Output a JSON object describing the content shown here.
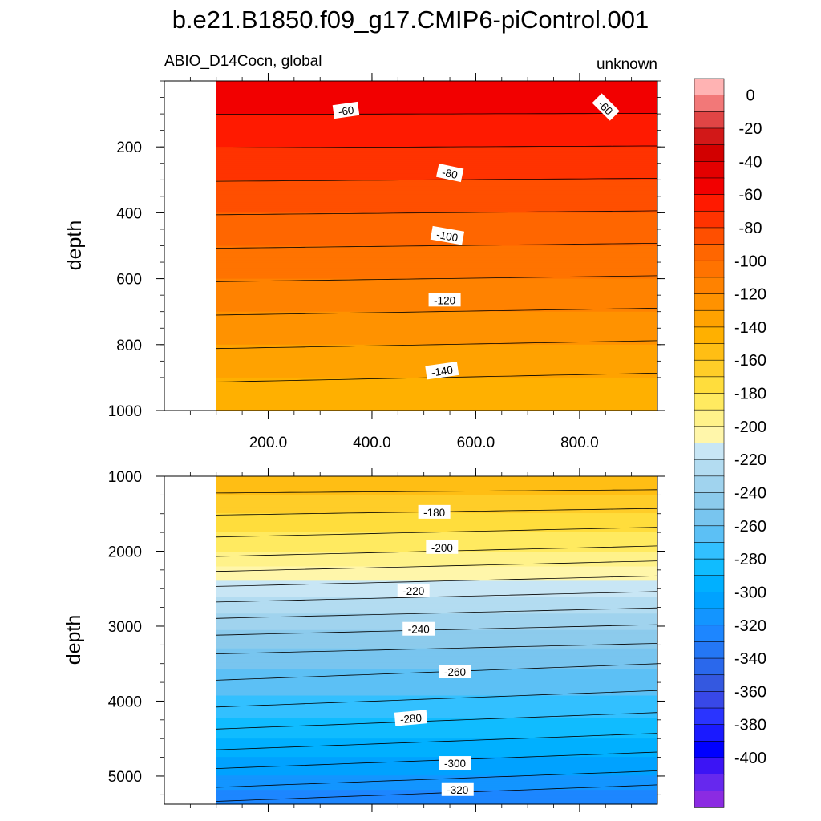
{
  "chart_data": {
    "type": "contour",
    "title": "b.e21.B1850.f09_g17.CMIP6-piControl.001",
    "left_label": "ABIO_D14Cocn, global",
    "right_label": "unknown",
    "ylabel": "depth",
    "panels": [
      {
        "name": "upper",
        "depth_range": [
          0,
          1000
        ],
        "y_ticks": [
          200,
          400,
          600,
          800,
          1000
        ],
        "y_tick_labels": [
          "200",
          "400",
          "600",
          "800",
          "1000"
        ],
        "contour_labels": [
          {
            "text": "-60",
            "x": 350,
            "depth": 90,
            "rot": -8
          },
          {
            "text": "-60",
            "x": 850,
            "depth": 80,
            "rot": 45
          },
          {
            "text": "-80",
            "x": 550,
            "depth": 280,
            "rot": 12
          },
          {
            "text": "-100",
            "x": 545,
            "depth": 470,
            "rot": 10
          },
          {
            "text": "-120",
            "x": 540,
            "depth": 665,
            "rot": 0
          },
          {
            "text": "-140",
            "x": 535,
            "depth": 880,
            "rot": -8
          }
        ]
      },
      {
        "name": "lower",
        "depth_range": [
          1000,
          5375
        ],
        "y_ticks": [
          1000,
          2000,
          3000,
          4000,
          5000
        ],
        "y_tick_labels": [
          "1000",
          "2000",
          "3000",
          "4000",
          "5000"
        ],
        "contour_labels": [
          {
            "text": "-180",
            "x": 520,
            "depth": 1480,
            "rot": 0
          },
          {
            "text": "-200",
            "x": 535,
            "depth": 1950,
            "rot": 0
          },
          {
            "text": "-220",
            "x": 480,
            "depth": 2530,
            "rot": 0
          },
          {
            "text": "-240",
            "x": 490,
            "depth": 3040,
            "rot": 0
          },
          {
            "text": "-260",
            "x": 560,
            "depth": 3610,
            "rot": 0
          },
          {
            "text": "-280",
            "x": 475,
            "depth": 4230,
            "rot": -5
          },
          {
            "text": "-300",
            "x": 560,
            "depth": 4830,
            "rot": 0
          },
          {
            "text": "-320",
            "x": 565,
            "depth": 5180,
            "rot": 0
          }
        ]
      }
    ],
    "x_ticks": [
      200,
      400,
      600,
      800
    ],
    "x_tick_labels": [
      "200.0",
      "400.0",
      "600.0",
      "800.0"
    ],
    "x_range": [
      0,
      950
    ],
    "data_x_start": 100,
    "contour_levels": [
      0,
      -10,
      -20,
      -30,
      -40,
      -50,
      -60,
      -70,
      -80,
      -90,
      -100,
      -110,
      -120,
      -130,
      -140,
      -150,
      -160,
      -170,
      -180,
      -190,
      -200,
      -210,
      -220,
      -230,
      -240,
      -250,
      -260,
      -270,
      -280,
      -290,
      -300,
      -310,
      -320,
      -330,
      -340,
      -350,
      -360,
      -370,
      -380,
      -390,
      -400,
      -410
    ],
    "profile_depths": [
      0,
      100,
      200,
      300,
      400,
      500,
      600,
      700,
      800,
      900,
      1000,
      1500,
      2000,
      2500,
      3000,
      3500,
      4000,
      4500,
      5000,
      5375
    ],
    "profile_values": [
      -52,
      -60,
      -70,
      -80,
      -90,
      -100,
      -110,
      -120,
      -130,
      -140,
      -150,
      -170,
      -190,
      -215,
      -238,
      -258,
      -272,
      -290,
      -310,
      -330
    ],
    "colorbar": {
      "labels": [
        "0",
        "-20",
        "-40",
        "-60",
        "-80",
        "-100",
        "-120",
        "-140",
        "-160",
        "-180",
        "-200",
        "-220",
        "-240",
        "-260",
        "-280",
        "-300",
        "-320",
        "-340",
        "-360",
        "-380",
        "-400"
      ],
      "colors": [
        "#ffb3b3",
        "#f27878",
        "#e04545",
        "#d21818",
        "#d20000",
        "#e30000",
        "#f20000",
        "#ff1a00",
        "#ff3300",
        "#ff4f00",
        "#ff6600",
        "#ff7300",
        "#ff8200",
        "#ff9200",
        "#ffa200",
        "#ffb000",
        "#ffbe14",
        "#ffcd28",
        "#ffdd3c",
        "#ffea60",
        "#fff28a",
        "#fff6aa",
        "#c8e6f5",
        "#b3dcf1",
        "#a0d3ee",
        "#8ccbec",
        "#78c5ef",
        "#5cc0f5",
        "#32c0ff",
        "#10bcff",
        "#00b0ff",
        "#00a2ff",
        "#1395ff",
        "#1d86ff",
        "#2477f5",
        "#2a68ec",
        "#3458e0",
        "#3848e8",
        "#2a34ff",
        "#1a1aff",
        "#0000ff",
        "#3c14f5",
        "#6628ee",
        "#8b2be2"
      ]
    }
  }
}
